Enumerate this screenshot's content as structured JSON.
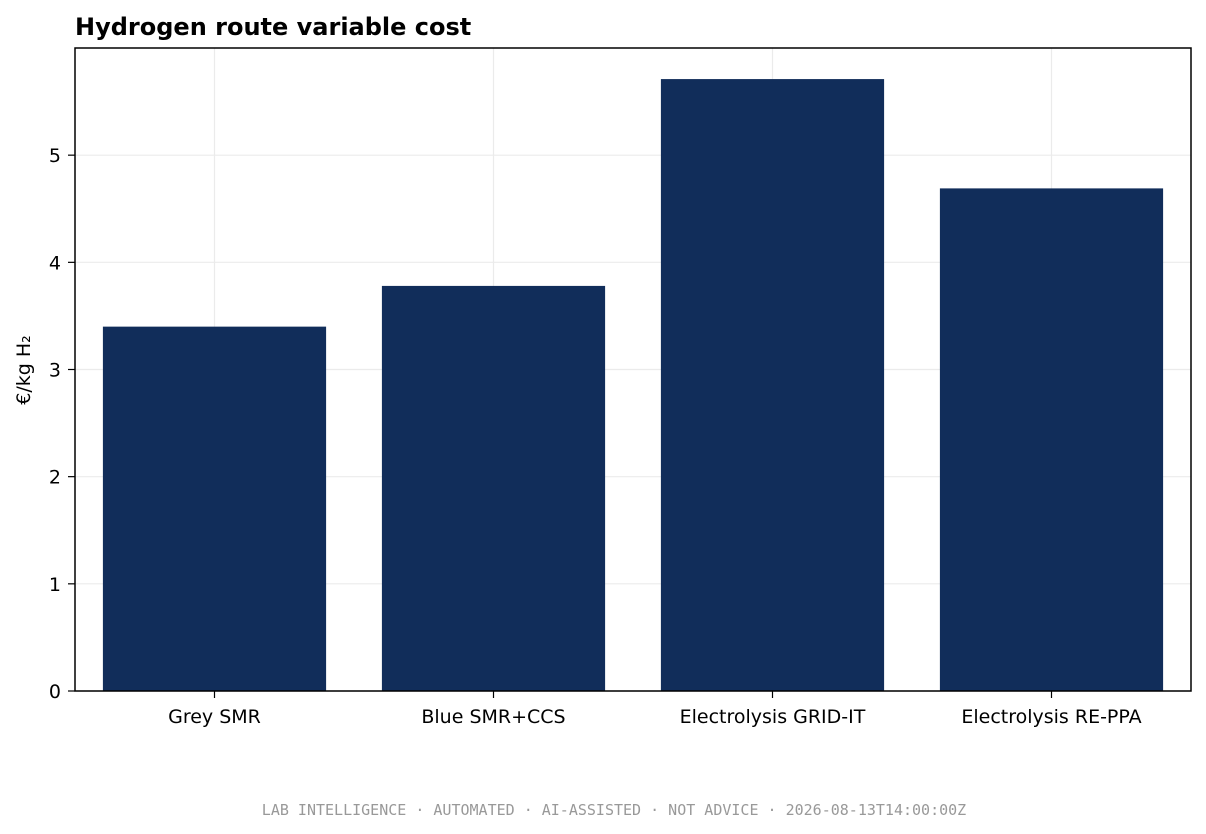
{
  "chart_data": {
    "type": "bar",
    "title": "Hydrogen route variable cost",
    "xlabel": "",
    "ylabel": "€/kg H₂",
    "categories": [
      "Grey SMR",
      "Blue SMR+CCS",
      "Electrolysis GRID-IT",
      "Electrolysis RE-PPA"
    ],
    "values": [
      3.4,
      3.78,
      5.71,
      4.69
    ],
    "ylim": [
      0,
      6.0
    ],
    "yticks": [
      0,
      1,
      2,
      3,
      4,
      5
    ],
    "bar_color": "#112d5a",
    "grid": true,
    "legend": false
  },
  "footer": {
    "text": "LAB INTELLIGENCE · AUTOMATED · AI-ASSISTED · NOT ADVICE · 2026-08-13T14:00:00Z"
  }
}
